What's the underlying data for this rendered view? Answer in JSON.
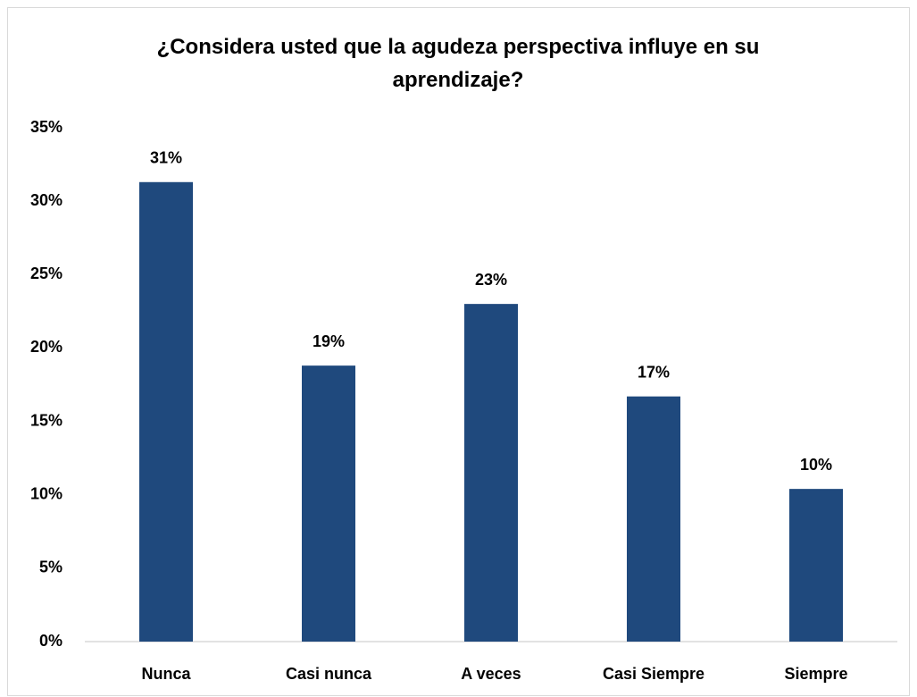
{
  "chart_data": {
    "type": "bar",
    "title": "¿Considera usted que la agudeza perspectiva influye en su aprendizaje?",
    "categories": [
      "Nunca",
      "Casi nunca",
      "A veces",
      "Casi Siempre",
      "Siempre"
    ],
    "values": [
      31.3,
      18.8,
      23.0,
      16.7,
      10.4
    ],
    "value_labels": [
      "31%",
      "19%",
      "23%",
      "17%",
      "10%"
    ],
    "color": "#1f497d",
    "ylim": [
      0,
      35
    ],
    "yticks": [
      {
        "value": 0,
        "label": "0%"
      },
      {
        "value": 5,
        "label": "5%"
      },
      {
        "value": 10,
        "label": "10%"
      },
      {
        "value": 15,
        "label": "15%"
      },
      {
        "value": 20,
        "label": "20%"
      },
      {
        "value": 25,
        "label": "25%"
      },
      {
        "value": 30,
        "label": "30%"
      },
      {
        "value": 35,
        "label": "35%"
      }
    ],
    "grid": false
  }
}
